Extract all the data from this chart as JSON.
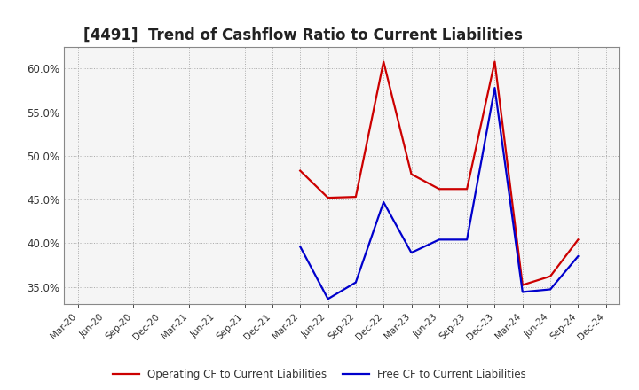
{
  "title": "[4491]  Trend of Cashflow Ratio to Current Liabilities",
  "title_fontsize": 12,
  "title_color": "#222222",
  "background_color": "#ffffff",
  "plot_bg_color": "#f5f5f5",
  "grid_color": "#aaaaaa",
  "x_labels": [
    "Mar-20",
    "Jun-20",
    "Sep-20",
    "Dec-20",
    "Mar-21",
    "Jun-21",
    "Sep-21",
    "Dec-21",
    "Mar-22",
    "Jun-22",
    "Sep-22",
    "Dec-22",
    "Mar-23",
    "Jun-23",
    "Sep-23",
    "Dec-23",
    "Mar-24",
    "Jun-24",
    "Sep-24",
    "Dec-24"
  ],
  "operating_cf": [
    null,
    null,
    null,
    null,
    null,
    null,
    null,
    null,
    0.483,
    0.452,
    0.453,
    0.608,
    0.479,
    0.462,
    0.462,
    0.608,
    0.352,
    0.362,
    0.404,
    null
  ],
  "free_cf": [
    null,
    null,
    null,
    null,
    null,
    null,
    null,
    null,
    0.396,
    0.336,
    0.355,
    0.447,
    0.389,
    0.404,
    0.404,
    0.578,
    0.344,
    0.347,
    0.385,
    null
  ],
  "ylim": [
    0.33,
    0.625
  ],
  "yticks": [
    0.35,
    0.4,
    0.45,
    0.5,
    0.55,
    0.6
  ],
  "operating_color": "#cc0000",
  "free_color": "#0000cc",
  "legend_operating": "Operating CF to Current Liabilities",
  "legend_free": "Free CF to Current Liabilities",
  "line_width": 1.6
}
